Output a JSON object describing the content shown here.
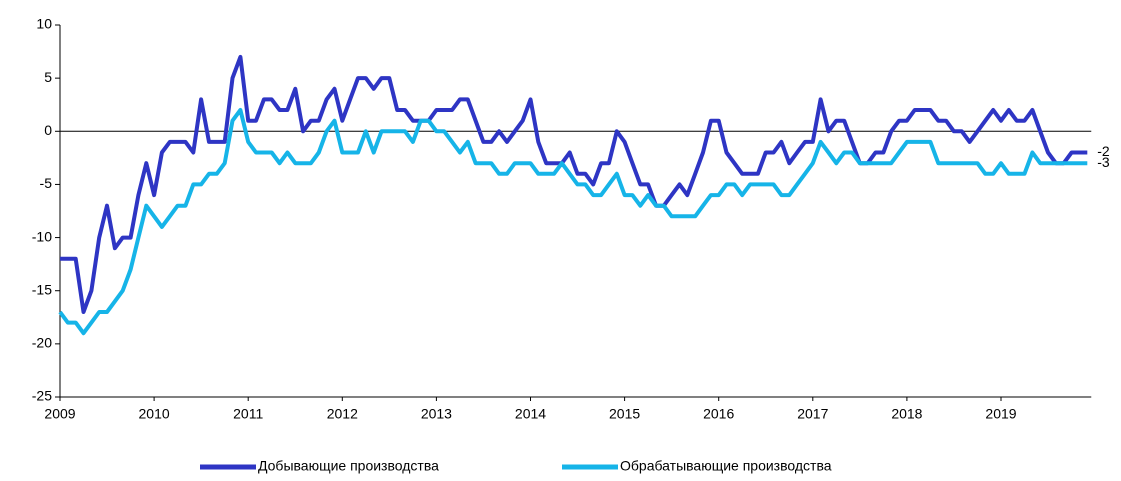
{
  "chart_data": {
    "type": "line",
    "categories": [
      "2009",
      null,
      null,
      null,
      null,
      null,
      null,
      null,
      null,
      null,
      null,
      null,
      "2010",
      null,
      null,
      null,
      null,
      null,
      null,
      null,
      null,
      null,
      null,
      null,
      "2011",
      null,
      null,
      null,
      null,
      null,
      null,
      null,
      null,
      null,
      null,
      null,
      "2012",
      null,
      null,
      null,
      null,
      null,
      null,
      null,
      null,
      null,
      null,
      null,
      "2013",
      null,
      null,
      null,
      null,
      null,
      null,
      null,
      null,
      null,
      null,
      null,
      "2014",
      null,
      null,
      null,
      null,
      null,
      null,
      null,
      null,
      null,
      null,
      null,
      "2015",
      null,
      null,
      null,
      null,
      null,
      null,
      null,
      null,
      null,
      null,
      null,
      "2016",
      null,
      null,
      null,
      null,
      null,
      null,
      null,
      null,
      null,
      null,
      null,
      "2017",
      null,
      null,
      null,
      null,
      null,
      null,
      null,
      null,
      null,
      null,
      null,
      "2018",
      null,
      null,
      null,
      null,
      null,
      null,
      null,
      null,
      null,
      null,
      null,
      "2019",
      null,
      null,
      null,
      null,
      null,
      null,
      null,
      null,
      null,
      null,
      null
    ],
    "series": [
      {
        "name": "Добывающие производства",
        "color": "#2e35c4",
        "values": [
          -12,
          -12,
          -12,
          -17,
          -15,
          -10,
          -7,
          -11,
          -10,
          -10,
          -6,
          -3,
          -6,
          -2,
          -1,
          -1,
          -1,
          -2,
          3,
          -1,
          -1,
          -1,
          5,
          7,
          1,
          1,
          3,
          3,
          2,
          2,
          4,
          0,
          1,
          1,
          3,
          4,
          1,
          3,
          5,
          5,
          4,
          5,
          5,
          2,
          2,
          1,
          1,
          1,
          2,
          2,
          2,
          3,
          3,
          1,
          -1,
          -1,
          0,
          -1,
          0,
          1,
          3,
          -1,
          -3,
          -3,
          -3,
          -2,
          -4,
          -4,
          -5,
          -3,
          -3,
          0,
          -1,
          -3,
          -5,
          -5,
          -7,
          -7,
          -6,
          -5,
          -6,
          -4,
          -2,
          1,
          1,
          -2,
          -3,
          -4,
          -4,
          -4,
          -2,
          -2,
          -1,
          -3,
          -2,
          -1,
          -1,
          3,
          0,
          1,
          1,
          -1,
          -3,
          -3,
          -2,
          -2,
          0,
          1,
          1,
          2,
          2,
          2,
          1,
          1,
          0,
          0,
          -1,
          0,
          1,
          2,
          1,
          2,
          1,
          1,
          2,
          0,
          -2,
          -3,
          -3,
          -2,
          -2,
          -2
        ]
      },
      {
        "name": "Обрабатывающие производства",
        "color": "#16b4e8",
        "values": [
          -17,
          -18,
          -18,
          -19,
          -18,
          -17,
          -17,
          -16,
          -15,
          -13,
          -10,
          -7,
          -8,
          -9,
          -8,
          -7,
          -7,
          -5,
          -5,
          -4,
          -4,
          -3,
          1,
          2,
          -1,
          -2,
          -2,
          -2,
          -3,
          -2,
          -3,
          -3,
          -3,
          -2,
          0,
          1,
          -2,
          -2,
          -2,
          0,
          -2,
          0,
          0,
          0,
          0,
          -1,
          1,
          1,
          0,
          0,
          -1,
          -2,
          -1,
          -3,
          -3,
          -3,
          -4,
          -4,
          -3,
          -3,
          -3,
          -4,
          -4,
          -4,
          -3,
          -4,
          -5,
          -5,
          -6,
          -6,
          -5,
          -4,
          -6,
          -6,
          -7,
          -6,
          -7,
          -7,
          -8,
          -8,
          -8,
          -8,
          -7,
          -6,
          -6,
          -5,
          -5,
          -6,
          -5,
          -5,
          -5,
          -5,
          -6,
          -6,
          -5,
          -4,
          -3,
          -1,
          -2,
          -3,
          -2,
          -2,
          -3,
          -3,
          -3,
          -3,
          -3,
          -2,
          -1,
          -1,
          -1,
          -1,
          -3,
          -3,
          -3,
          -3,
          -3,
          -3,
          -4,
          -4,
          -3,
          -4,
          -4,
          -4,
          -2,
          -3,
          -3,
          -3,
          -3,
          -3,
          -3,
          -3
        ]
      }
    ],
    "ylim": [
      -25,
      10
    ],
    "yticks": [
      -25,
      -20,
      -15,
      -10,
      -5,
      0,
      5,
      10
    ],
    "legend": "bottom"
  }
}
